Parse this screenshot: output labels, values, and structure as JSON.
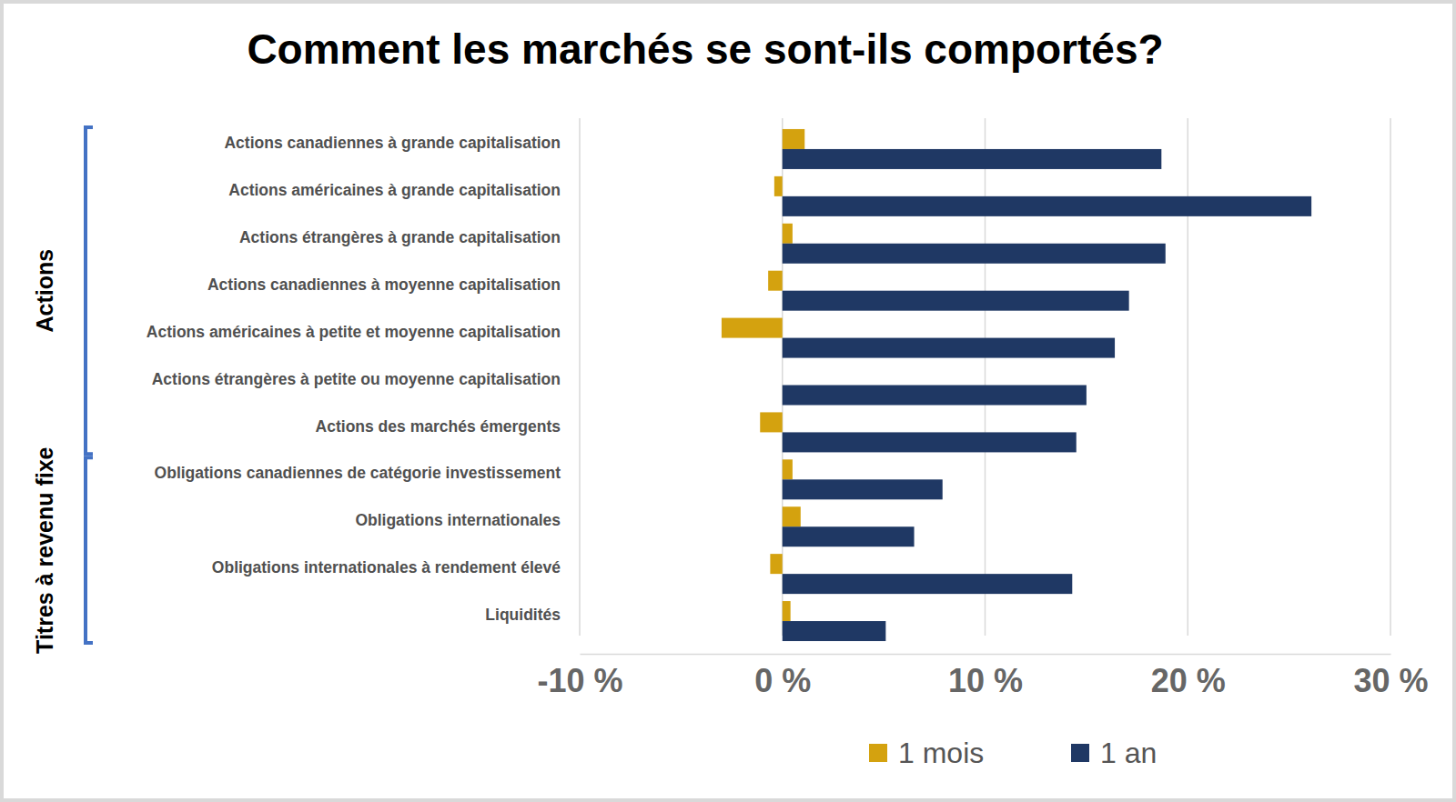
{
  "chart_data": {
    "type": "bar",
    "orientation": "horizontal",
    "title": "Comment les marchés se sont-ils comportés?",
    "categories": [
      "Actions canadiennes à grande capitalisation",
      "Actions américaines à grande capitalisation",
      "Actions étrangères à grande capitalisation",
      "Actions canadiennes à moyenne capitalisation",
      "Actions américaines à petite et moyenne capitalisation",
      "Actions étrangères à petite ou moyenne capitalisation",
      "Actions des marchés émergents",
      "Obligations canadiennes de catégorie investissement",
      "Obligations internationales",
      "Obligations internationales à rendement élevé",
      "Liquidités"
    ],
    "series": [
      {
        "name": "1 mois",
        "color": "#d4a20f",
        "values": [
          1.1,
          -0.4,
          0.5,
          -0.7,
          -3.0,
          0.0,
          -1.1,
          0.5,
          0.9,
          -0.6,
          0.4
        ]
      },
      {
        "name": "1 an",
        "color": "#1f3864",
        "values": [
          18.7,
          26.1,
          18.9,
          17.1,
          16.4,
          15.0,
          14.5,
          7.9,
          6.5,
          14.3,
          5.1
        ]
      }
    ],
    "annotations": [
      {
        "text": "Actions",
        "from": "Actions canadiennes à grande capitalisation",
        "to": "Actions des marchés émergents"
      },
      {
        "text": "Titres à revenu fixe",
        "from": "Obligations canadiennes de catégorie investissement",
        "to": "Liquidités"
      }
    ],
    "xlim": [
      -10,
      30
    ],
    "xticks": [
      {
        "value": -10,
        "label": "-10 %"
      },
      {
        "value": 0,
        "label": "0 %"
      },
      {
        "value": 10,
        "label": "10 %"
      },
      {
        "value": 20,
        "label": "20 %"
      },
      {
        "value": 30,
        "label": "30 %"
      }
    ],
    "grid": true,
    "legend": "bottom"
  }
}
